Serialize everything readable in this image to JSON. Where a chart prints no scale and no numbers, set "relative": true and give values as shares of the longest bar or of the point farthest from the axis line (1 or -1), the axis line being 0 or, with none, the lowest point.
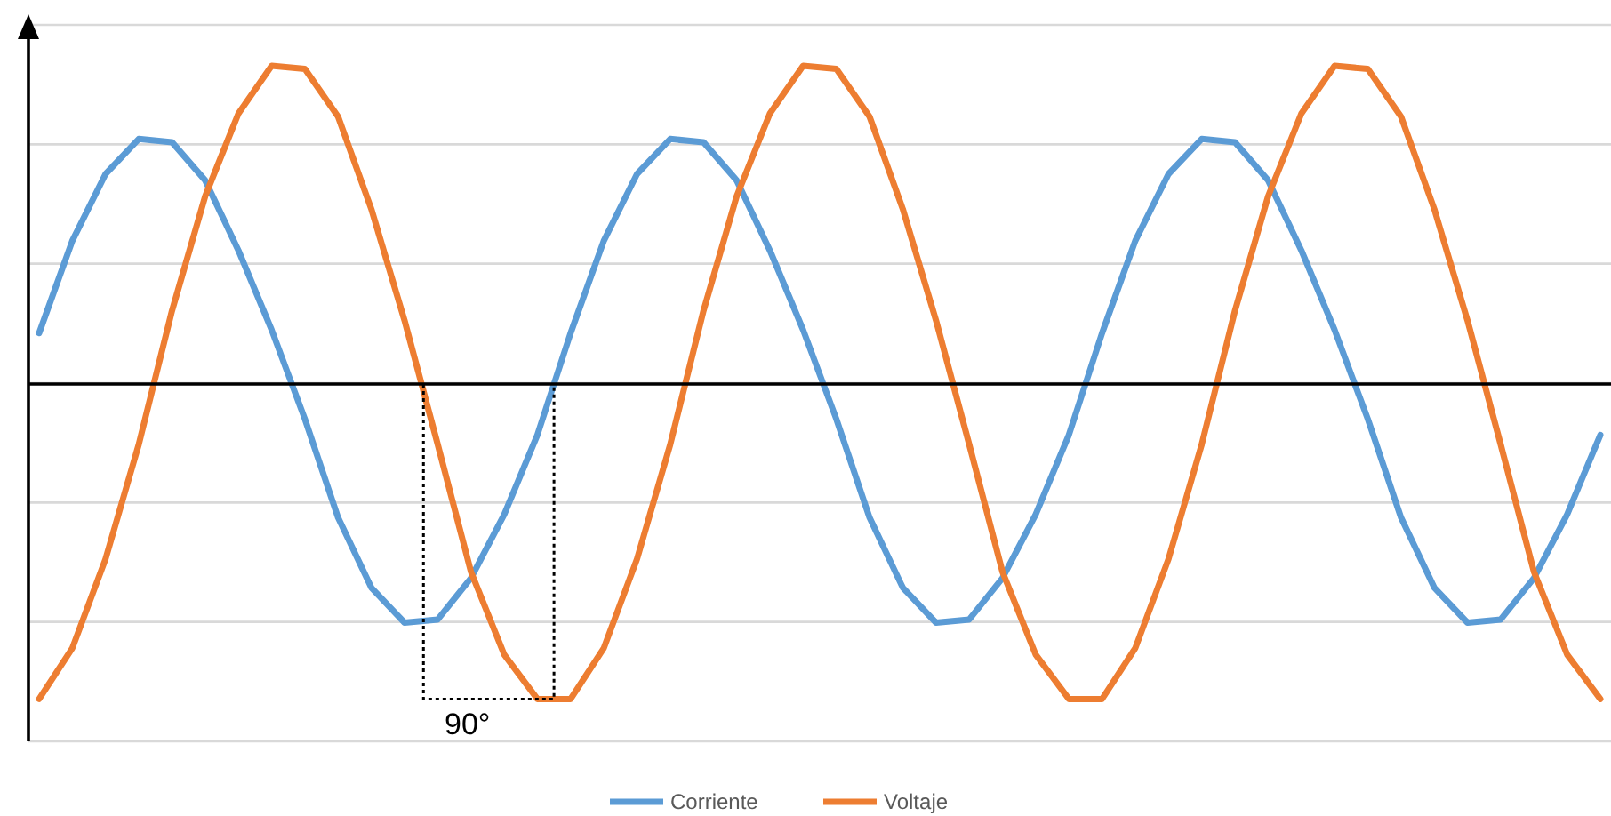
{
  "chart_data": {
    "type": "line",
    "relative": true,
    "grid": true,
    "legend": "bottom",
    "marker": "none",
    "line_style": "solid",
    "categories": [
      null,
      null,
      null,
      null,
      null,
      null,
      null,
      null,
      null,
      null,
      null,
      null,
      null,
      null,
      null,
      null,
      null,
      null,
      null,
      null,
      null,
      null,
      null,
      null,
      null,
      null,
      null,
      null,
      null,
      null,
      null,
      null,
      null,
      null,
      null,
      null,
      null,
      null,
      null,
      null,
      null,
      null,
      null,
      null,
      null,
      null,
      null,
      null
    ],
    "series": [
      {
        "name": "Corriente",
        "color": "#5b9bd5",
        "values": [
          0.16,
          0.45,
          0.66,
          0.77,
          0.76,
          0.64,
          0.42,
          0.17,
          -0.11,
          -0.42,
          -0.64,
          -0.75,
          -0.74,
          -0.61,
          -0.41,
          -0.16,
          0.16,
          0.45,
          0.66,
          0.77,
          0.76,
          0.64,
          0.42,
          0.17,
          -0.11,
          -0.42,
          -0.64,
          -0.75,
          -0.74,
          -0.61,
          -0.41,
          -0.16,
          0.16,
          0.45,
          0.66,
          0.77,
          0.76,
          0.64,
          0.42,
          0.17,
          -0.11,
          -0.42,
          -0.64,
          -0.75,
          -0.74,
          -0.61,
          -0.41,
          -0.16
        ]
      },
      {
        "name": "Voltaje",
        "color": "#ed7d31",
        "values": [
          -0.99,
          -0.83,
          -0.55,
          -0.19,
          0.23,
          0.59,
          0.85,
          1,
          0.99,
          0.84,
          0.55,
          0.2,
          -0.19,
          -0.59,
          -0.85,
          -0.99,
          -0.99,
          -0.83,
          -0.55,
          -0.19,
          0.23,
          0.59,
          0.85,
          1,
          0.99,
          0.84,
          0.55,
          0.2,
          -0.19,
          -0.59,
          -0.85,
          -0.99,
          -0.99,
          -0.83,
          -0.55,
          -0.19,
          0.23,
          0.59,
          0.85,
          1,
          0.99,
          0.84,
          0.55,
          0.2,
          -0.19,
          -0.59,
          -0.85,
          -0.99
        ]
      }
    ],
    "annotations": [
      "90°"
    ]
  }
}
